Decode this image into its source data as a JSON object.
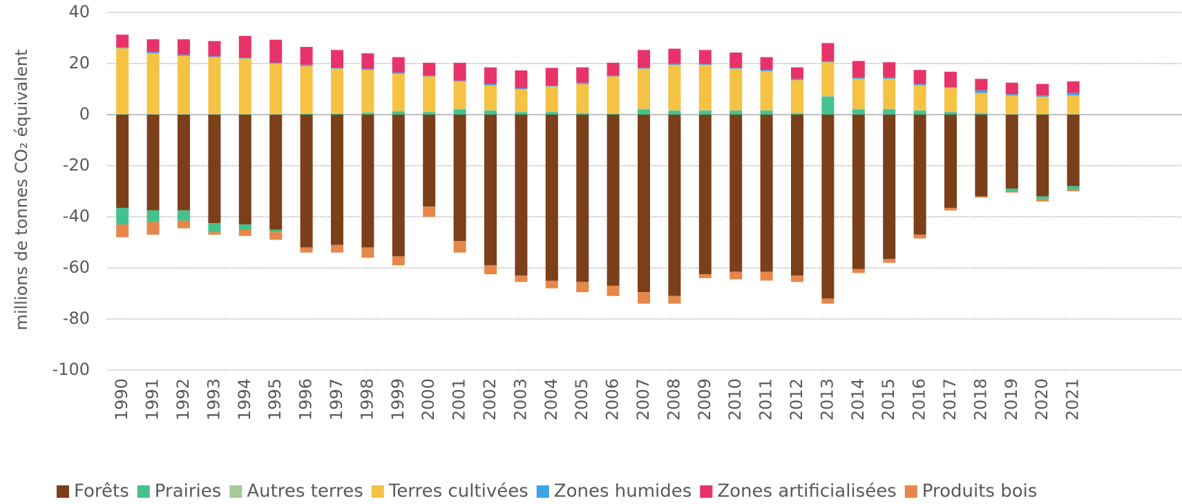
{
  "chart_data": {
    "type": "stacked_bar",
    "ylabel": "millions de tonnes CO₂ équivalent",
    "categories": [
      "1990",
      "1991",
      "1992",
      "1993",
      "1994",
      "1995",
      "1996",
      "1997",
      "1998",
      "1999",
      "2000",
      "2001",
      "2002",
      "2003",
      "2004",
      "2005",
      "2006",
      "2007",
      "2008",
      "2009",
      "2010",
      "2011",
      "2012",
      "2013",
      "2014",
      "2015",
      "2016",
      "2017",
      "2018",
      "2019",
      "2020",
      "2021"
    ],
    "series": [
      {
        "name": "Forêts",
        "color": "#7b3f1a",
        "values": [
          -36.5,
          -37.5,
          -37.5,
          -42.5,
          -43,
          -45,
          -52,
          -51,
          -52,
          -55.5,
          -36,
          -49.5,
          -59,
          -63,
          -65,
          -65.5,
          -67,
          -69.5,
          -71,
          -62.5,
          -61.5,
          -61.5,
          -63,
          -72,
          -60.5,
          -56.5,
          -47,
          -36.5,
          -32,
          -29,
          -32,
          -28
        ]
      },
      {
        "name": "Prairies",
        "color": "#43c28f",
        "values": [
          -6.5,
          -4.5,
          -4,
          -3.5,
          -2,
          -1,
          0.3,
          0.3,
          0.7,
          1.2,
          1,
          2,
          1.5,
          1,
          1,
          0.5,
          0.3,
          2,
          1.5,
          1.5,
          1.5,
          1.5,
          0.5,
          7,
          2,
          2,
          1.5,
          1,
          0.5,
          -1,
          -1,
          -1.5
        ]
      },
      {
        "name": "Autres terres",
        "color": "#a8c99a",
        "values": [
          0.3,
          0.3,
          0.3,
          0.3,
          0.3,
          0.3,
          0.3,
          0.3,
          0.3,
          0.3,
          0.3,
          0.3,
          0.3,
          0.3,
          0.3,
          0.3,
          0.3,
          0.3,
          0.3,
          0.3,
          0.3,
          0.3,
          0.3,
          0.3,
          0.3,
          0.3,
          0.3,
          0.3,
          0.3,
          0.3,
          0.3,
          0.3
        ]
      },
      {
        "name": "Terres cultivées",
        "color": "#f5c243",
        "values": [
          25.7,
          23.7,
          22.7,
          22.2,
          21.7,
          19.7,
          18.4,
          17.4,
          16.5,
          14.5,
          13.7,
          10.7,
          9.7,
          8.7,
          9.7,
          11.2,
          14.4,
          15.7,
          17.7,
          17.7,
          16.2,
          15.2,
          12.7,
          13.2,
          11.7,
          11.7,
          9.7,
          9.2,
          7.7,
          7.2,
          6.7,
          7.2
        ]
      },
      {
        "name": "Zones humides",
        "color": "#3aa6e8",
        "values": [
          0.3,
          0.5,
          0.5,
          0.3,
          0.3,
          0.3,
          0.5,
          0.3,
          0.5,
          0.5,
          0.3,
          0.3,
          0.5,
          0.3,
          0.3,
          0.5,
          0.3,
          0.3,
          0.3,
          0.3,
          0.3,
          0.5,
          0.5,
          0.5,
          0.5,
          0.5,
          0.5,
          0.3,
          1,
          0.5,
          0.5,
          1
        ]
      },
      {
        "name": "Zones artificialisées",
        "color": "#e8336a",
        "values": [
          5,
          5,
          6,
          6,
          8.5,
          9,
          7,
          7,
          6,
          6,
          5,
          7,
          6.5,
          7,
          7,
          6,
          5,
          7,
          6,
          5.5,
          6,
          5,
          4.5,
          7,
          6.5,
          6,
          5.5,
          6,
          4.5,
          4.5,
          4.5,
          4.5
        ]
      },
      {
        "name": "Produits bois",
        "color": "#e5874a",
        "values": [
          -5,
          -5,
          -3,
          -1,
          -2.5,
          -3,
          -2,
          -3,
          -4,
          -3.5,
          -4,
          -4.5,
          -3.5,
          -2.5,
          -3,
          -4,
          -4,
          -4.5,
          -3,
          -1.5,
          -3,
          -3.5,
          -2.5,
          -2,
          -1.5,
          -1.5,
          -1.5,
          -1,
          -0.5,
          -0.5,
          -1,
          -0.5
        ]
      }
    ],
    "ylim": [
      -100,
      40
    ],
    "yticks": [
      -100,
      -80,
      -60,
      -40,
      -20,
      0,
      20,
      40
    ],
    "grid": true,
    "legend": "bottom"
  }
}
